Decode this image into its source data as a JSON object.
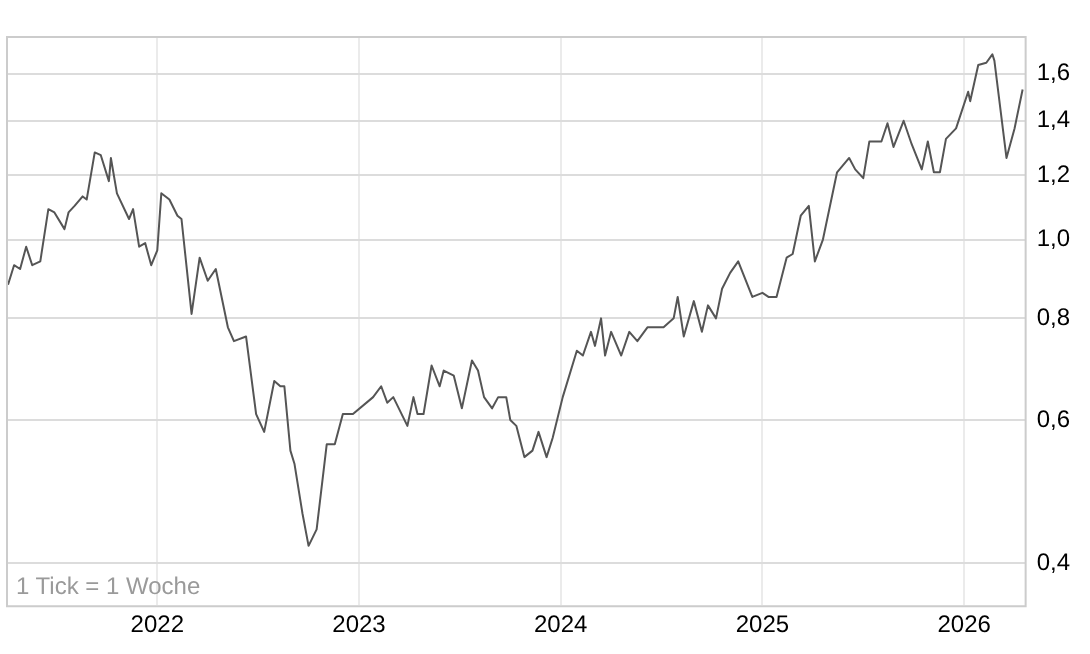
{
  "chart_data": {
    "type": "line",
    "log": "y",
    "grid": true,
    "marker": "none",
    "line_style": "solid",
    "xlim": [
      2021.25,
      2026.3
    ],
    "xticks": [
      2022,
      2023,
      2024,
      2025,
      2026
    ],
    "ylim": [
      0.355,
      1.78
    ],
    "yticks": [
      {
        "value": 0.4,
        "label": "0,4"
      },
      {
        "value": 0.6,
        "label": "0,6"
      },
      {
        "value": 0.8,
        "label": "0,8"
      },
      {
        "value": 1.0,
        "label": "1,0"
      },
      {
        "value": 1.2,
        "label": "1,2"
      },
      {
        "value": 1.4,
        "label": "1,4"
      },
      {
        "value": 1.6,
        "label": "1,6"
      }
    ],
    "annotations": [
      "1 Tick = 1 Woche"
    ],
    "series": [
      {
        "color": "#555555",
        "x": [
          2021.26,
          2021.29,
          2021.32,
          2021.35,
          2021.38,
          2021.42,
          2021.46,
          2021.49,
          2021.54,
          2021.56,
          2021.59,
          2021.63,
          2021.65,
          2021.69,
          2021.72,
          2021.76,
          2021.77,
          2021.8,
          2021.86,
          2021.88,
          2021.91,
          2021.94,
          2021.97,
          2022.0,
          2022.02,
          2022.06,
          2022.1,
          2022.12,
          2022.17,
          2022.21,
          2022.25,
          2022.29,
          2022.35,
          2022.38,
          2022.44,
          2022.49,
          2022.53,
          2022.58,
          2022.61,
          2022.63,
          2022.66,
          2022.68,
          2022.72,
          2022.75,
          2022.79,
          2022.84,
          2022.88,
          2022.92,
          2022.97,
          2023.07,
          2023.11,
          2023.14,
          2023.17,
          2023.24,
          2023.27,
          2023.29,
          2023.32,
          2023.36,
          2023.4,
          2023.42,
          2023.47,
          2023.51,
          2023.56,
          2023.59,
          2023.62,
          2023.66,
          2023.69,
          2023.73,
          2023.75,
          2023.78,
          2023.82,
          2023.86,
          2023.89,
          2023.93,
          2023.96,
          2024.01,
          2024.08,
          2024.11,
          2024.15,
          2024.17,
          2024.2,
          2024.22,
          2024.25,
          2024.3,
          2024.34,
          2024.38,
          2024.43,
          2024.51,
          2024.56,
          2024.58,
          2024.61,
          2024.66,
          2024.7,
          2024.73,
          2024.77,
          2024.8,
          2024.84,
          2024.88,
          2024.95,
          2025.0,
          2025.03,
          2025.07,
          2025.12,
          2025.15,
          2025.19,
          2025.23,
          2025.26,
          2025.3,
          2025.37,
          2025.43,
          2025.46,
          2025.5,
          2025.53,
          2025.59,
          2025.62,
          2025.65,
          2025.7,
          2025.74,
          2025.79,
          2025.82,
          2025.85,
          2025.88,
          2025.91,
          2025.96,
          2026.02,
          2026.03,
          2026.07,
          2026.11,
          2026.14,
          2026.15,
          2026.21,
          2026.25,
          2026.29
        ],
        "values": [
          0.88,
          0.93,
          0.92,
          0.98,
          0.93,
          0.94,
          1.09,
          1.08,
          1.03,
          1.08,
          1.1,
          1.13,
          1.12,
          1.28,
          1.27,
          1.18,
          1.26,
          1.14,
          1.06,
          1.09,
          0.98,
          0.99,
          0.93,
          0.97,
          1.14,
          1.12,
          1.07,
          1.06,
          0.81,
          0.95,
          0.89,
          0.92,
          0.78,
          0.75,
          0.76,
          0.61,
          0.58,
          0.67,
          0.66,
          0.66,
          0.55,
          0.53,
          0.46,
          0.42,
          0.44,
          0.56,
          0.56,
          0.61,
          0.61,
          0.64,
          0.66,
          0.63,
          0.64,
          0.59,
          0.64,
          0.61,
          0.61,
          0.7,
          0.66,
          0.69,
          0.68,
          0.62,
          0.71,
          0.69,
          0.64,
          0.62,
          0.64,
          0.64,
          0.6,
          0.59,
          0.54,
          0.55,
          0.58,
          0.54,
          0.57,
          0.64,
          0.73,
          0.72,
          0.77,
          0.74,
          0.8,
          0.72,
          0.77,
          0.72,
          0.77,
          0.75,
          0.78,
          0.78,
          0.8,
          0.85,
          0.76,
          0.84,
          0.77,
          0.83,
          0.8,
          0.87,
          0.91,
          0.94,
          0.85,
          0.86,
          0.85,
          0.85,
          0.95,
          0.96,
          1.07,
          1.1,
          0.94,
          1.0,
          1.21,
          1.26,
          1.22,
          1.19,
          1.32,
          1.32,
          1.39,
          1.3,
          1.4,
          1.31,
          1.22,
          1.32,
          1.21,
          1.21,
          1.33,
          1.37,
          1.52,
          1.48,
          1.64,
          1.65,
          1.69,
          1.66,
          1.26,
          1.37,
          1.53
        ]
      }
    ]
  }
}
